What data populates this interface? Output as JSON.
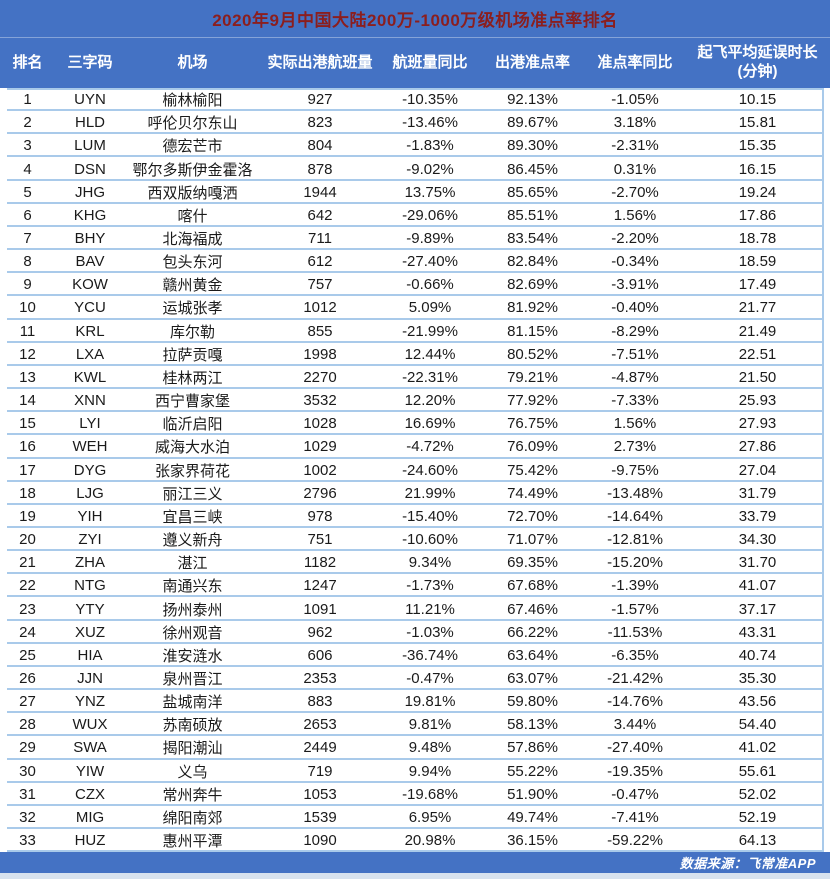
{
  "colors": {
    "header_bg": "#4472C4",
    "title_text": "#8B1E1E",
    "header_text": "#FFFFFF",
    "row_text": "#1A1A1A",
    "grid_line": "#A9CAEA",
    "row_bg": "#FFFFFF",
    "bottom_strip": "#D8E2EF"
  },
  "footer": {
    "source_label": "数据来源：飞常准APP"
  },
  "chart_data": {
    "type": "table",
    "title": "2020年9月中国大陆200万-1000万级机场准点率排名",
    "columns": [
      {
        "key": "rank",
        "label": "排名"
      },
      {
        "key": "code",
        "label": "三字码"
      },
      {
        "key": "airport",
        "label": "机场"
      },
      {
        "key": "flights",
        "label": "实际出港航班量"
      },
      {
        "key": "flights_yoy",
        "label": "航班量同比"
      },
      {
        "key": "otp",
        "label": "出港准点率"
      },
      {
        "key": "otp_yoy",
        "label": "准点率同比"
      },
      {
        "key": "avg_delay",
        "label": "起飞平均延误时长\n(分钟)"
      }
    ],
    "rows": [
      [
        "1",
        "UYN",
        "榆林榆阳",
        "927",
        "-10.35%",
        "92.13%",
        "-1.05%",
        "10.15"
      ],
      [
        "2",
        "HLD",
        "呼伦贝尔东山",
        "823",
        "-13.46%",
        "89.67%",
        "3.18%",
        "15.81"
      ],
      [
        "3",
        "LUM",
        "德宏芒市",
        "804",
        "-1.83%",
        "89.30%",
        "-2.31%",
        "15.35"
      ],
      [
        "4",
        "DSN",
        "鄂尔多斯伊金霍洛",
        "878",
        "-9.02%",
        "86.45%",
        "0.31%",
        "16.15"
      ],
      [
        "5",
        "JHG",
        "西双版纳嘎洒",
        "1944",
        "13.75%",
        "85.65%",
        "-2.70%",
        "19.24"
      ],
      [
        "6",
        "KHG",
        "喀什",
        "642",
        "-29.06%",
        "85.51%",
        "1.56%",
        "17.86"
      ],
      [
        "7",
        "BHY",
        "北海福成",
        "711",
        "-9.89%",
        "83.54%",
        "-2.20%",
        "18.78"
      ],
      [
        "8",
        "BAV",
        "包头东河",
        "612",
        "-27.40%",
        "82.84%",
        "-0.34%",
        "18.59"
      ],
      [
        "9",
        "KOW",
        "赣州黄金",
        "757",
        "-0.66%",
        "82.69%",
        "-3.91%",
        "17.49"
      ],
      [
        "10",
        "YCU",
        "运城张孝",
        "1012",
        "5.09%",
        "81.92%",
        "-0.40%",
        "21.77"
      ],
      [
        "11",
        "KRL",
        "库尔勒",
        "855",
        "-21.99%",
        "81.15%",
        "-8.29%",
        "21.49"
      ],
      [
        "12",
        "LXA",
        "拉萨贡嘎",
        "1998",
        "12.44%",
        "80.52%",
        "-7.51%",
        "22.51"
      ],
      [
        "13",
        "KWL",
        "桂林两江",
        "2270",
        "-22.31%",
        "79.21%",
        "-4.87%",
        "21.50"
      ],
      [
        "14",
        "XNN",
        "西宁曹家堡",
        "3532",
        "12.20%",
        "77.92%",
        "-7.33%",
        "25.93"
      ],
      [
        "15",
        "LYI",
        "临沂启阳",
        "1028",
        "16.69%",
        "76.75%",
        "1.56%",
        "27.93"
      ],
      [
        "16",
        "WEH",
        "威海大水泊",
        "1029",
        "-4.72%",
        "76.09%",
        "2.73%",
        "27.86"
      ],
      [
        "17",
        "DYG",
        "张家界荷花",
        "1002",
        "-24.60%",
        "75.42%",
        "-9.75%",
        "27.04"
      ],
      [
        "18",
        "LJG",
        "丽江三义",
        "2796",
        "21.99%",
        "74.49%",
        "-13.48%",
        "31.79"
      ],
      [
        "19",
        "YIH",
        "宜昌三峡",
        "978",
        "-15.40%",
        "72.70%",
        "-14.64%",
        "33.79"
      ],
      [
        "20",
        "ZYI",
        "遵义新舟",
        "751",
        "-10.60%",
        "71.07%",
        "-12.81%",
        "34.30"
      ],
      [
        "21",
        "ZHA",
        "湛江",
        "1182",
        "9.34%",
        "69.35%",
        "-15.20%",
        "31.70"
      ],
      [
        "22",
        "NTG",
        "南通兴东",
        "1247",
        "-1.73%",
        "67.68%",
        "-1.39%",
        "41.07"
      ],
      [
        "23",
        "YTY",
        "扬州泰州",
        "1091",
        "11.21%",
        "67.46%",
        "-1.57%",
        "37.17"
      ],
      [
        "24",
        "XUZ",
        "徐州观音",
        "962",
        "-1.03%",
        "66.22%",
        "-11.53%",
        "43.31"
      ],
      [
        "25",
        "HIA",
        "淮安涟水",
        "606",
        "-36.74%",
        "63.64%",
        "-6.35%",
        "40.74"
      ],
      [
        "26",
        "JJN",
        "泉州晋江",
        "2353",
        "-0.47%",
        "63.07%",
        "-21.42%",
        "35.30"
      ],
      [
        "27",
        "YNZ",
        "盐城南洋",
        "883",
        "19.81%",
        "59.80%",
        "-14.76%",
        "43.56"
      ],
      [
        "28",
        "WUX",
        "苏南硕放",
        "2653",
        "9.81%",
        "58.13%",
        "3.44%",
        "54.40"
      ],
      [
        "29",
        "SWA",
        "揭阳潮汕",
        "2449",
        "9.48%",
        "57.86%",
        "-27.40%",
        "41.02"
      ],
      [
        "30",
        "YIW",
        "义乌",
        "719",
        "9.94%",
        "55.22%",
        "-19.35%",
        "55.61"
      ],
      [
        "31",
        "CZX",
        "常州奔牛",
        "1053",
        "-19.68%",
        "51.90%",
        "-0.47%",
        "52.02"
      ],
      [
        "32",
        "MIG",
        "绵阳南郊",
        "1539",
        "6.95%",
        "49.74%",
        "-7.41%",
        "52.19"
      ],
      [
        "33",
        "HUZ",
        "惠州平潭",
        "1090",
        "20.98%",
        "36.15%",
        "-59.22%",
        "64.13"
      ]
    ]
  }
}
